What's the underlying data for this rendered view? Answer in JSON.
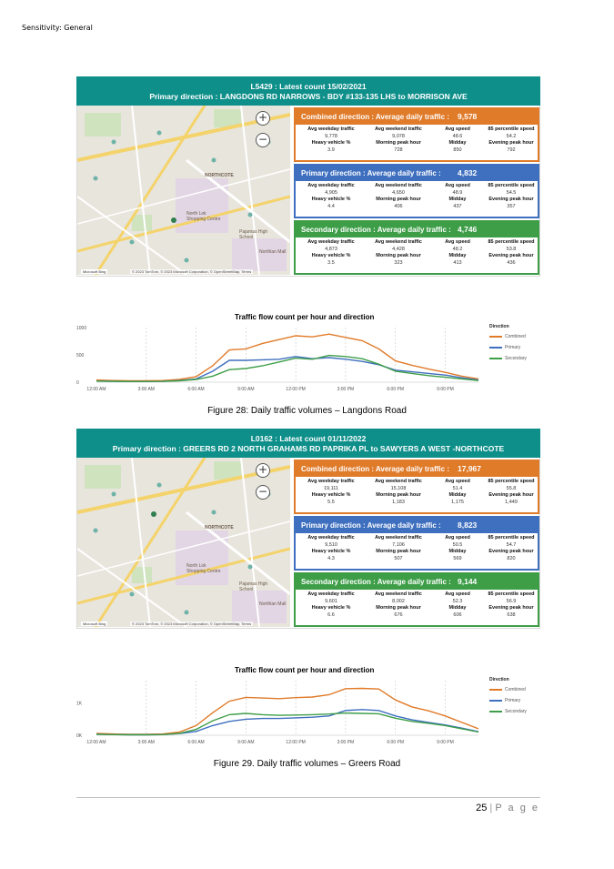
{
  "sensitivity": "Sensitivity: General",
  "map": {
    "zoom_in": "+",
    "zoom_out": "−",
    "labels": [
      "NORTHCOTE",
      "North Lok Shopping Centre",
      "Pajamas High School",
      "Northlan Mall"
    ],
    "attribution": "© 2023 TomTom, © 2023 Microsoft Corporation, © OpenStreetMap, Terms",
    "logo": "Microsoft Bing"
  },
  "stat_labels": {
    "weekday": "Avg weekday traffic",
    "weekend": "Avg weekend traffic",
    "speed": "Avg speed",
    "p85": "85 percentile speed",
    "heavy": "Heavy vehicle %",
    "morning": "Morning peak hour",
    "midday": "Midday",
    "evening": "Evening peak hour"
  },
  "chart_title": "Traffic flow count per hour and direction",
  "legend_title": "Direction",
  "legend": [
    "Combined",
    "Primary",
    "Secondary"
  ],
  "colors": {
    "combined": "#e07b2a",
    "primary": "#3f6fbf",
    "secondary": "#3e9e48",
    "banner": "#0e8f8a"
  },
  "panels": [
    {
      "title_line1": "L5429 : Latest count 15/02/2021",
      "title_line2": "Primary direction : LANGDONS RD NARROWS - BDY #133-135 LHS to MORRISON AVE",
      "caption": "Figure 28: Daily traffic volumes – Langdons Road",
      "blocks": [
        {
          "head": "Combined direction :  Average daily traffic :",
          "total": "9,578",
          "weekday": "9,778",
          "weekend": "9,078",
          "speed": "48.6",
          "p85": "54.2",
          "heavy": "3.9",
          "morning": "728",
          "midday": "850",
          "evening": "792"
        },
        {
          "head": "Primary direction :      Average daily traffic :",
          "total": "4,832",
          "weekday": "4,905",
          "weekend": "4,650",
          "speed": "48.9",
          "p85": "54.5",
          "heavy": "4.4",
          "morning": "406",
          "midday": "437",
          "evening": "357"
        },
        {
          "head": "Secondary direction :  Average daily traffic :",
          "total": "4,746",
          "weekday": "4,873",
          "weekend": "4,428",
          "speed": "48.2",
          "p85": "53.8",
          "heavy": "3.5",
          "morning": "323",
          "midday": "413",
          "evening": "436"
        }
      ]
    },
    {
      "title_line1": "L0162 : Latest count 01/11/2022",
      "title_line2": "Primary direction : GREERS RD 2 NORTH GRAHAMS RD PAPRIKA PL to SAWYERS A WEST -NORTHCOTE",
      "caption": "Figure 29. Daily traffic volumes – Greers Road",
      "blocks": [
        {
          "head": "Combined direction :  Average daily traffic :",
          "total": "17,967",
          "weekday": "19,111",
          "weekend": "15,108",
          "speed": "51.4",
          "p85": "55.8",
          "heavy": "5.5",
          "morning": "1,183",
          "midday": "1,175",
          "evening": "1,449"
        },
        {
          "head": "Primary direction :      Average daily traffic :",
          "total": "8,823",
          "weekday": "9,510",
          "weekend": "7,106",
          "speed": "50.5",
          "p85": "54.7",
          "heavy": "4.3",
          "morning": "507",
          "midday": "569",
          "evening": "820"
        },
        {
          "head": "Secondary direction :  Average daily traffic :",
          "total": "9,144",
          "weekday": "9,601",
          "weekend": "8,002",
          "speed": "52.3",
          "p85": "56.9",
          "heavy": "6.6",
          "morning": "676",
          "midday": "606",
          "evening": "638"
        }
      ]
    }
  ],
  "chart_data": [
    {
      "type": "line",
      "title": "Traffic flow count per hour and direction",
      "x": [
        "12:00 AM",
        "1:00 AM",
        "2:00 AM",
        "3:00 AM",
        "4:00 AM",
        "5:00 AM",
        "6:00 AM",
        "7:00 AM",
        "8:00 AM",
        "9:00 AM",
        "10:00 AM",
        "11:00 AM",
        "12:00 PM",
        "1:00 PM",
        "2:00 PM",
        "3:00 PM",
        "4:00 PM",
        "5:00 PM",
        "6:00 PM",
        "7:00 PM",
        "8:00 PM",
        "9:00 PM",
        "10:00 PM",
        "11:00 PM"
      ],
      "xticks": [
        "12:00 AM",
        "3:00 AM",
        "6:00 AM",
        "9:00 AM",
        "12:00 PM",
        "3:00 PM",
        "6:00 PM",
        "9:00 PM"
      ],
      "yticks": [
        "0",
        "500",
        "1000"
      ],
      "ylim": [
        0,
        1000
      ],
      "legend_title": "Direction",
      "legend": "right",
      "series": [
        {
          "name": "Combined",
          "values": [
            40,
            30,
            25,
            25,
            30,
            50,
            100,
            300,
            590,
            610,
            710,
            780,
            850,
            830,
            880,
            820,
            760,
            610,
            390,
            310,
            240,
            180,
            110,
            60
          ]
        },
        {
          "name": "Primary",
          "values": [
            20,
            15,
            12,
            12,
            15,
            30,
            60,
            200,
            400,
            400,
            410,
            420,
            470,
            430,
            450,
            420,
            380,
            320,
            220,
            190,
            160,
            130,
            80,
            40
          ]
        },
        {
          "name": "Secondary",
          "values": [
            20,
            15,
            13,
            13,
            15,
            25,
            50,
            110,
            230,
            250,
            300,
            370,
            440,
            420,
            490,
            470,
            430,
            330,
            200,
            160,
            120,
            90,
            60,
            30
          ]
        }
      ]
    },
    {
      "type": "line",
      "title": "Traffic flow count per hour and direction",
      "x": [
        "12:00 AM",
        "1:00 AM",
        "2:00 AM",
        "3:00 AM",
        "4:00 AM",
        "5:00 AM",
        "6:00 AM",
        "7:00 AM",
        "8:00 AM",
        "9:00 AM",
        "10:00 AM",
        "11:00 AM",
        "12:00 PM",
        "1:00 PM",
        "2:00 PM",
        "3:00 PM",
        "4:00 PM",
        "5:00 PM",
        "6:00 PM",
        "7:00 PM",
        "8:00 PM",
        "9:00 PM",
        "10:00 PM",
        "11:00 PM"
      ],
      "xticks": [
        "12:00 AM",
        "3:00 AM",
        "6:00 AM",
        "9:00 AM",
        "12:00 PM",
        "3:00 PM",
        "6:00 PM",
        "9:00 PM"
      ],
      "yticks": [
        "0K",
        "1K"
      ],
      "ylim": [
        0,
        1700
      ],
      "legend_title": "Direction",
      "legend": "right",
      "series": [
        {
          "name": "Combined",
          "values": [
            60,
            40,
            30,
            30,
            40,
            100,
            300,
            700,
            1060,
            1180,
            1160,
            1140,
            1170,
            1190,
            1260,
            1450,
            1460,
            1440,
            1100,
            880,
            760,
            600,
            400,
            200
          ]
        },
        {
          "name": "Primary",
          "values": [
            30,
            20,
            15,
            15,
            20,
            50,
            120,
            300,
            430,
            500,
            520,
            520,
            540,
            560,
            600,
            770,
            800,
            770,
            600,
            480,
            400,
            320,
            220,
            110
          ]
        },
        {
          "name": "Secondary",
          "values": [
            30,
            20,
            15,
            15,
            20,
            60,
            180,
            450,
            640,
            680,
            640,
            620,
            630,
            640,
            660,
            690,
            680,
            670,
            530,
            430,
            370,
            300,
            200,
            100
          ]
        }
      ]
    }
  ],
  "page": {
    "number": "25",
    "separator": "|",
    "label": "P a g e"
  }
}
